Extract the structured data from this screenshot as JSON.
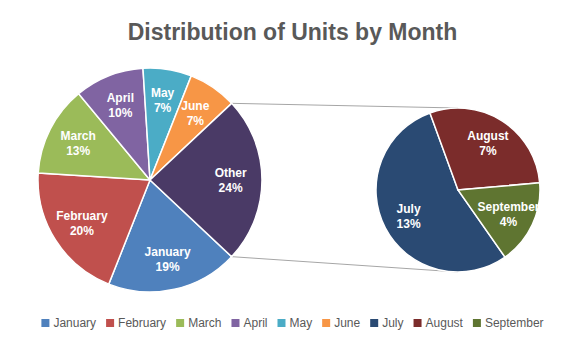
{
  "chart_data": {
    "type": "pie",
    "title": "Distribution of Units by Month",
    "categories": [
      "January",
      "February",
      "March",
      "April",
      "May",
      "June",
      "Other"
    ],
    "values": [
      19,
      20,
      13,
      10,
      7,
      7,
      24
    ],
    "value_labels": [
      "19%",
      "20%",
      "13%",
      "10%",
      "7%",
      "7%",
      "24%"
    ],
    "colors": [
      "#4f81bd",
      "#c0504d",
      "#9bbb59",
      "#8064a2",
      "#4bacc6",
      "#f79646",
      "#4a3a66"
    ],
    "secondary": {
      "categories": [
        "July",
        "August",
        "September"
      ],
      "values": [
        13,
        7,
        4
      ],
      "value_labels": [
        "13%",
        "7%",
        "4%"
      ],
      "colors": [
        "#2a4a73",
        "#7b2c2b",
        "#5f7531"
      ]
    },
    "data_labels": true,
    "legend": "bottom"
  }
}
